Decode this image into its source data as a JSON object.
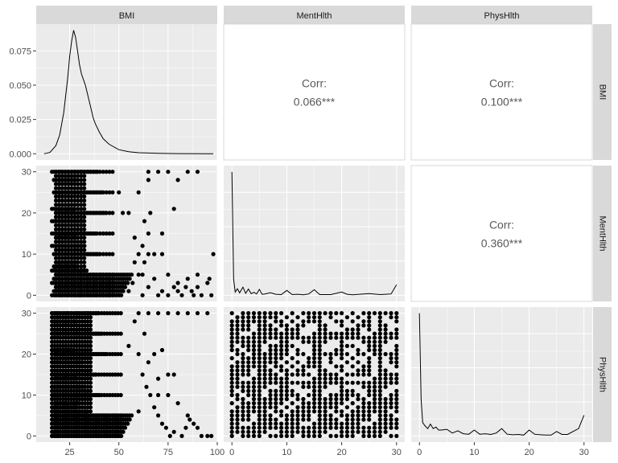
{
  "columns": [
    "BMI",
    "MentHlth",
    "PhysHlth"
  ],
  "rows": [
    "BMI",
    "MentHlth",
    "PhysHlth"
  ],
  "colors": {
    "panel_bg": "#ebebeb",
    "grid_major": "#ffffff",
    "strip_bg": "#d9d9d9",
    "ink": "#000000",
    "corr_text": "#595959"
  },
  "chart_data": {
    "type": "scatter",
    "layout": "pairs-matrix",
    "ranges": {
      "BMI": [
        8,
        100
      ],
      "MentHlth": [
        -1.5,
        31.5
      ],
      "PhysHlth": [
        -1.5,
        31.5
      ]
    },
    "ticks": {
      "BMI": [
        "25",
        "50",
        "75",
        "100"
      ],
      "MentHlth": [
        "0",
        "10",
        "20",
        "30"
      ],
      "PhysHlth": [
        "0",
        "10",
        "20",
        "30"
      ]
    },
    "density_axis": {
      "range": [
        -0.0045,
        0.0945
      ],
      "ticks": [
        "0.000",
        "0.025",
        "0.050",
        "0.075"
      ]
    },
    "grid": true,
    "correlations": [
      {
        "row": "BMI",
        "col": "MentHlth",
        "label": "Corr:",
        "value": "0.066***"
      },
      {
        "row": "BMI",
        "col": "PhysHlth",
        "label": "Corr:",
        "value": "0.100***"
      },
      {
        "row": "MentHlth",
        "col": "PhysHlth",
        "label": "Corr:",
        "value": "0.360***"
      }
    ],
    "densities": {
      "BMI": [
        [
          12,
          0.0
        ],
        [
          15,
          0.001
        ],
        [
          18,
          0.006
        ],
        [
          20,
          0.014
        ],
        [
          22,
          0.03
        ],
        [
          24,
          0.055
        ],
        [
          25,
          0.071
        ],
        [
          26,
          0.082
        ],
        [
          27,
          0.09
        ],
        [
          28,
          0.085
        ],
        [
          29,
          0.075
        ],
        [
          30,
          0.065
        ],
        [
          31,
          0.058
        ],
        [
          32,
          0.054
        ],
        [
          33,
          0.05
        ],
        [
          34,
          0.044
        ],
        [
          35,
          0.038
        ],
        [
          36,
          0.032
        ],
        [
          37,
          0.026
        ],
        [
          38,
          0.022
        ],
        [
          40,
          0.016
        ],
        [
          42,
          0.011
        ],
        [
          45,
          0.007
        ],
        [
          50,
          0.003
        ],
        [
          55,
          0.0015
        ],
        [
          60,
          0.0008
        ],
        [
          70,
          0.0003
        ],
        [
          80,
          0.0001
        ],
        [
          98,
          0.0
        ]
      ],
      "MentHlth": [
        [
          0,
          0.76
        ],
        [
          0.3,
          0.1
        ],
        [
          0.6,
          0.02
        ],
        [
          1,
          0.04
        ],
        [
          1.4,
          0.015
        ],
        [
          2,
          0.05
        ],
        [
          2.5,
          0.012
        ],
        [
          3,
          0.038
        ],
        [
          3.5,
          0.01
        ],
        [
          4,
          0.018
        ],
        [
          4.5,
          0.008
        ],
        [
          5,
          0.036
        ],
        [
          5.5,
          0.006
        ],
        [
          6,
          0.008
        ],
        [
          7,
          0.016
        ],
        [
          8,
          0.006
        ],
        [
          9,
          0.004
        ],
        [
          10,
          0.03
        ],
        [
          11,
          0.004
        ],
        [
          12,
          0.006
        ],
        [
          13,
          0.003
        ],
        [
          14,
          0.008
        ],
        [
          15,
          0.034
        ],
        [
          16,
          0.004
        ],
        [
          18,
          0.004
        ],
        [
          20,
          0.02
        ],
        [
          21,
          0.006
        ],
        [
          22,
          0.003
        ],
        [
          25,
          0.01
        ],
        [
          27,
          0.004
        ],
        [
          28,
          0.006
        ],
        [
          29,
          0.008
        ],
        [
          30,
          0.065
        ]
      ],
      "PhysHlth": [
        [
          0,
          0.83
        ],
        [
          0.3,
          0.25
        ],
        [
          0.6,
          0.09
        ],
        [
          1,
          0.07
        ],
        [
          1.5,
          0.05
        ],
        [
          2,
          0.08
        ],
        [
          2.5,
          0.05
        ],
        [
          3,
          0.06
        ],
        [
          3.5,
          0.04
        ],
        [
          4,
          0.04
        ],
        [
          5,
          0.045
        ],
        [
          6,
          0.02
        ],
        [
          7,
          0.035
        ],
        [
          8,
          0.015
        ],
        [
          9,
          0.012
        ],
        [
          10,
          0.04
        ],
        [
          11,
          0.012
        ],
        [
          12,
          0.015
        ],
        [
          13,
          0.01
        ],
        [
          14,
          0.02
        ],
        [
          15,
          0.05
        ],
        [
          16,
          0.012
        ],
        [
          17,
          0.008
        ],
        [
          18,
          0.01
        ],
        [
          19,
          0.006
        ],
        [
          20,
          0.04
        ],
        [
          21,
          0.012
        ],
        [
          22,
          0.008
        ],
        [
          23,
          0.006
        ],
        [
          24,
          0.006
        ],
        [
          25,
          0.03
        ],
        [
          26,
          0.01
        ],
        [
          27,
          0.01
        ],
        [
          28,
          0.03
        ],
        [
          29,
          0.05
        ],
        [
          30,
          0.14
        ]
      ]
    },
    "scatter": {
      "BMI_vs_MentHlth": {
        "x_range": [
          12,
          98
        ],
        "y_values": [
          0,
          1,
          2,
          3,
          4,
          5,
          6,
          7,
          8,
          10,
          12,
          14,
          15,
          18,
          20,
          21,
          25,
          28,
          30
        ],
        "points": [
          [
            30,
            0
          ],
          [
            45,
            0
          ],
          [
            55,
            1
          ],
          [
            57,
            3
          ],
          [
            60,
            5
          ],
          [
            62,
            0
          ],
          [
            63,
            8
          ],
          [
            65,
            2
          ],
          [
            68,
            4
          ],
          [
            70,
            0
          ],
          [
            72,
            1
          ],
          [
            75,
            0
          ],
          [
            78,
            2
          ],
          [
            80,
            3
          ],
          [
            82,
            0
          ],
          [
            85,
            4
          ],
          [
            87,
            1
          ],
          [
            88,
            0
          ],
          [
            90,
            2
          ],
          [
            92,
            0
          ],
          [
            95,
            3
          ],
          [
            97,
            0
          ],
          [
            98,
            10
          ],
          [
            90,
            5
          ],
          [
            96,
            4
          ],
          [
            84,
            2
          ],
          [
            80,
            1
          ],
          [
            75,
            5
          ],
          [
            60,
            10
          ],
          [
            62,
            12
          ],
          [
            58,
            14
          ],
          [
            55,
            20
          ],
          [
            60,
            25
          ],
          [
            65,
            30
          ],
          [
            70,
            30
          ],
          [
            75,
            30
          ],
          [
            78,
            21
          ],
          [
            72,
            15
          ],
          [
            65,
            15
          ],
          [
            68,
            10
          ],
          [
            63,
            18
          ],
          [
            50,
            25
          ],
          [
            52,
            20
          ],
          [
            66,
            20
          ],
          [
            58,
            8
          ],
          [
            65,
            10
          ],
          [
            62,
            5
          ],
          [
            90,
            30
          ],
          [
            85,
            30
          ],
          [
            80,
            28
          ],
          [
            65,
            28
          ],
          [
            72,
            10
          ]
        ]
      },
      "BMI_vs_PhysHlth": {
        "x_range": [
          12,
          98
        ],
        "points": [
          [
            60,
            30
          ],
          [
            65,
            30
          ],
          [
            70,
            30
          ],
          [
            75,
            30
          ],
          [
            80,
            30
          ],
          [
            85,
            30
          ],
          [
            90,
            30
          ],
          [
            95,
            30
          ],
          [
            63,
            25
          ],
          [
            68,
            20
          ],
          [
            72,
            21
          ],
          [
            75,
            15
          ],
          [
            78,
            15
          ],
          [
            70,
            10
          ],
          [
            75,
            10
          ],
          [
            80,
            8
          ],
          [
            85,
            5
          ],
          [
            88,
            3
          ],
          [
            90,
            2
          ],
          [
            92,
            0
          ],
          [
            95,
            0
          ],
          [
            97,
            0
          ],
          [
            60,
            20
          ],
          [
            62,
            15
          ],
          [
            64,
            12
          ],
          [
            66,
            10
          ],
          [
            68,
            7
          ],
          [
            70,
            5
          ],
          [
            72,
            3
          ],
          [
            74,
            2
          ],
          [
            76,
            0
          ],
          [
            78,
            1
          ],
          [
            82,
            0
          ],
          [
            84,
            2
          ],
          [
            86,
            4
          ],
          [
            70,
            14
          ],
          [
            65,
            18
          ],
          [
            58,
            28
          ],
          [
            55,
            22
          ],
          [
            60,
            6
          ]
        ]
      },
      "MentHlth_vs_PhysHlth": {
        "x_values": [
          0,
          1,
          2,
          3,
          4,
          5,
          6,
          7,
          8,
          9,
          10,
          11,
          12,
          13,
          14,
          15,
          16,
          17,
          18,
          19,
          20,
          21,
          22,
          23,
          24,
          25,
          26,
          27,
          28,
          29,
          30
        ],
        "y_values": [
          0,
          1,
          2,
          3,
          4,
          5,
          6,
          7,
          8,
          9,
          10,
          11,
          12,
          13,
          14,
          15,
          16,
          17,
          18,
          19,
          20,
          21,
          22,
          23,
          24,
          25,
          26,
          27,
          28,
          29,
          30
        ]
      }
    }
  }
}
